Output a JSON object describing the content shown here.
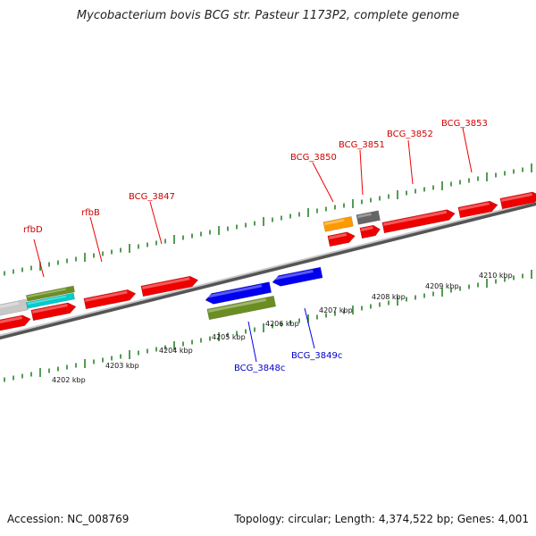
{
  "title": "Mycobacterium bovis BCG str. Pasteur 1173P2, complete genome",
  "footer": {
    "accession": "Accession: NC_008769",
    "summary": "Topology: circular; Length: 4,374,522 bp; Genes: 4,001"
  },
  "colors": {
    "forward_gene": "#ee0000",
    "reverse_gene": "#0000ee",
    "olive_feature": "#6b8e23",
    "orange_feature": "#ff9900",
    "cyan_feature": "#00cccc",
    "grey_feature": "#666666",
    "light_grey_feature": "#c8c8c8",
    "tick": "#1a7a1a",
    "backbone": "#888888"
  },
  "gene_labels_forward": [
    "rfbD",
    "rfbB",
    "BCG_3847",
    "BCG_3850",
    "BCG_3851",
    "BCG_3852",
    "BCG_3853"
  ],
  "gene_labels_reverse": [
    "BCG_3848c",
    "BCG_3849c"
  ],
  "kbp_labels": [
    "4202 kbp",
    "4203 kbp",
    "4204 kbp",
    "4205 kbp",
    "4206 kbp",
    "4207 kbp",
    "4208 kbp",
    "4209 kbp",
    "4210 kbp"
  ]
}
